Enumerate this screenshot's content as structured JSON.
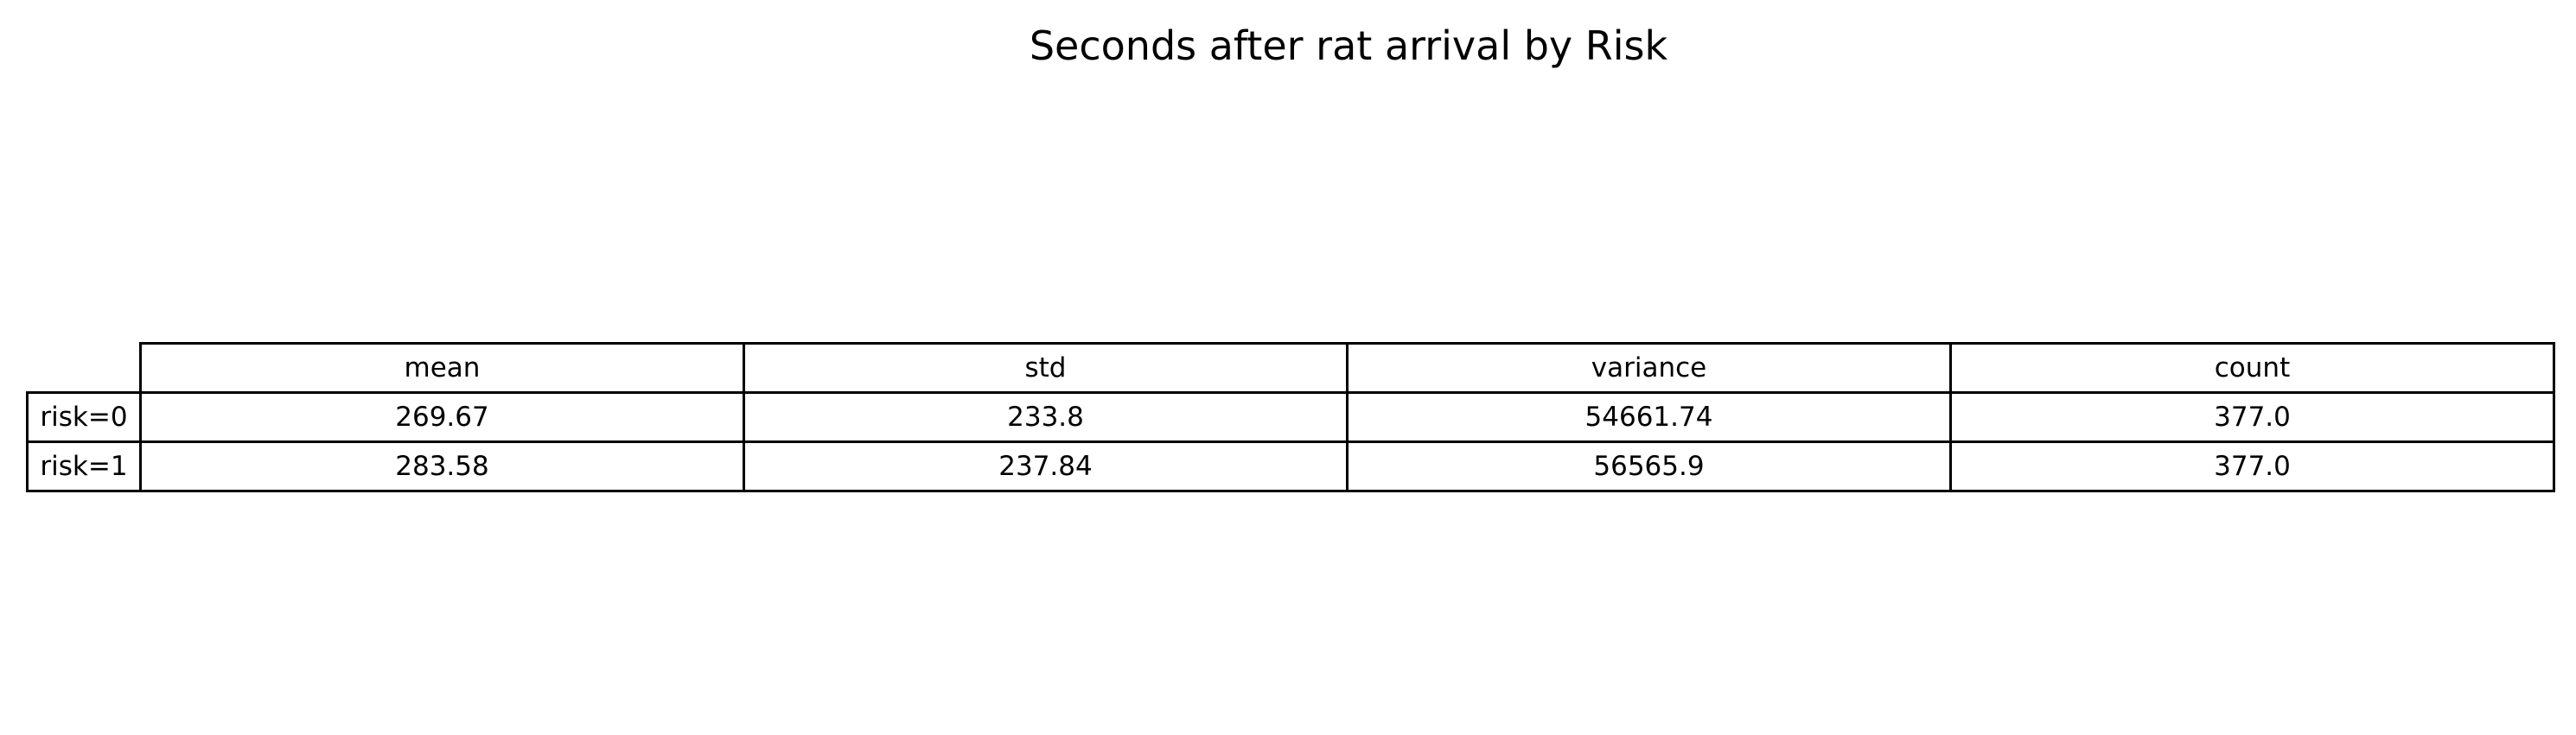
{
  "chart_data": {
    "type": "table",
    "title": "Seconds after rat arrival by Risk",
    "columns": [
      "mean",
      "std",
      "variance",
      "count"
    ],
    "rows": [
      {
        "label": "risk=0",
        "values": [
          "269.67",
          "233.8",
          "54661.74",
          "377.0"
        ]
      },
      {
        "label": "risk=1",
        "values": [
          "283.58",
          "237.84",
          "56565.9",
          "377.0"
        ]
      }
    ]
  }
}
